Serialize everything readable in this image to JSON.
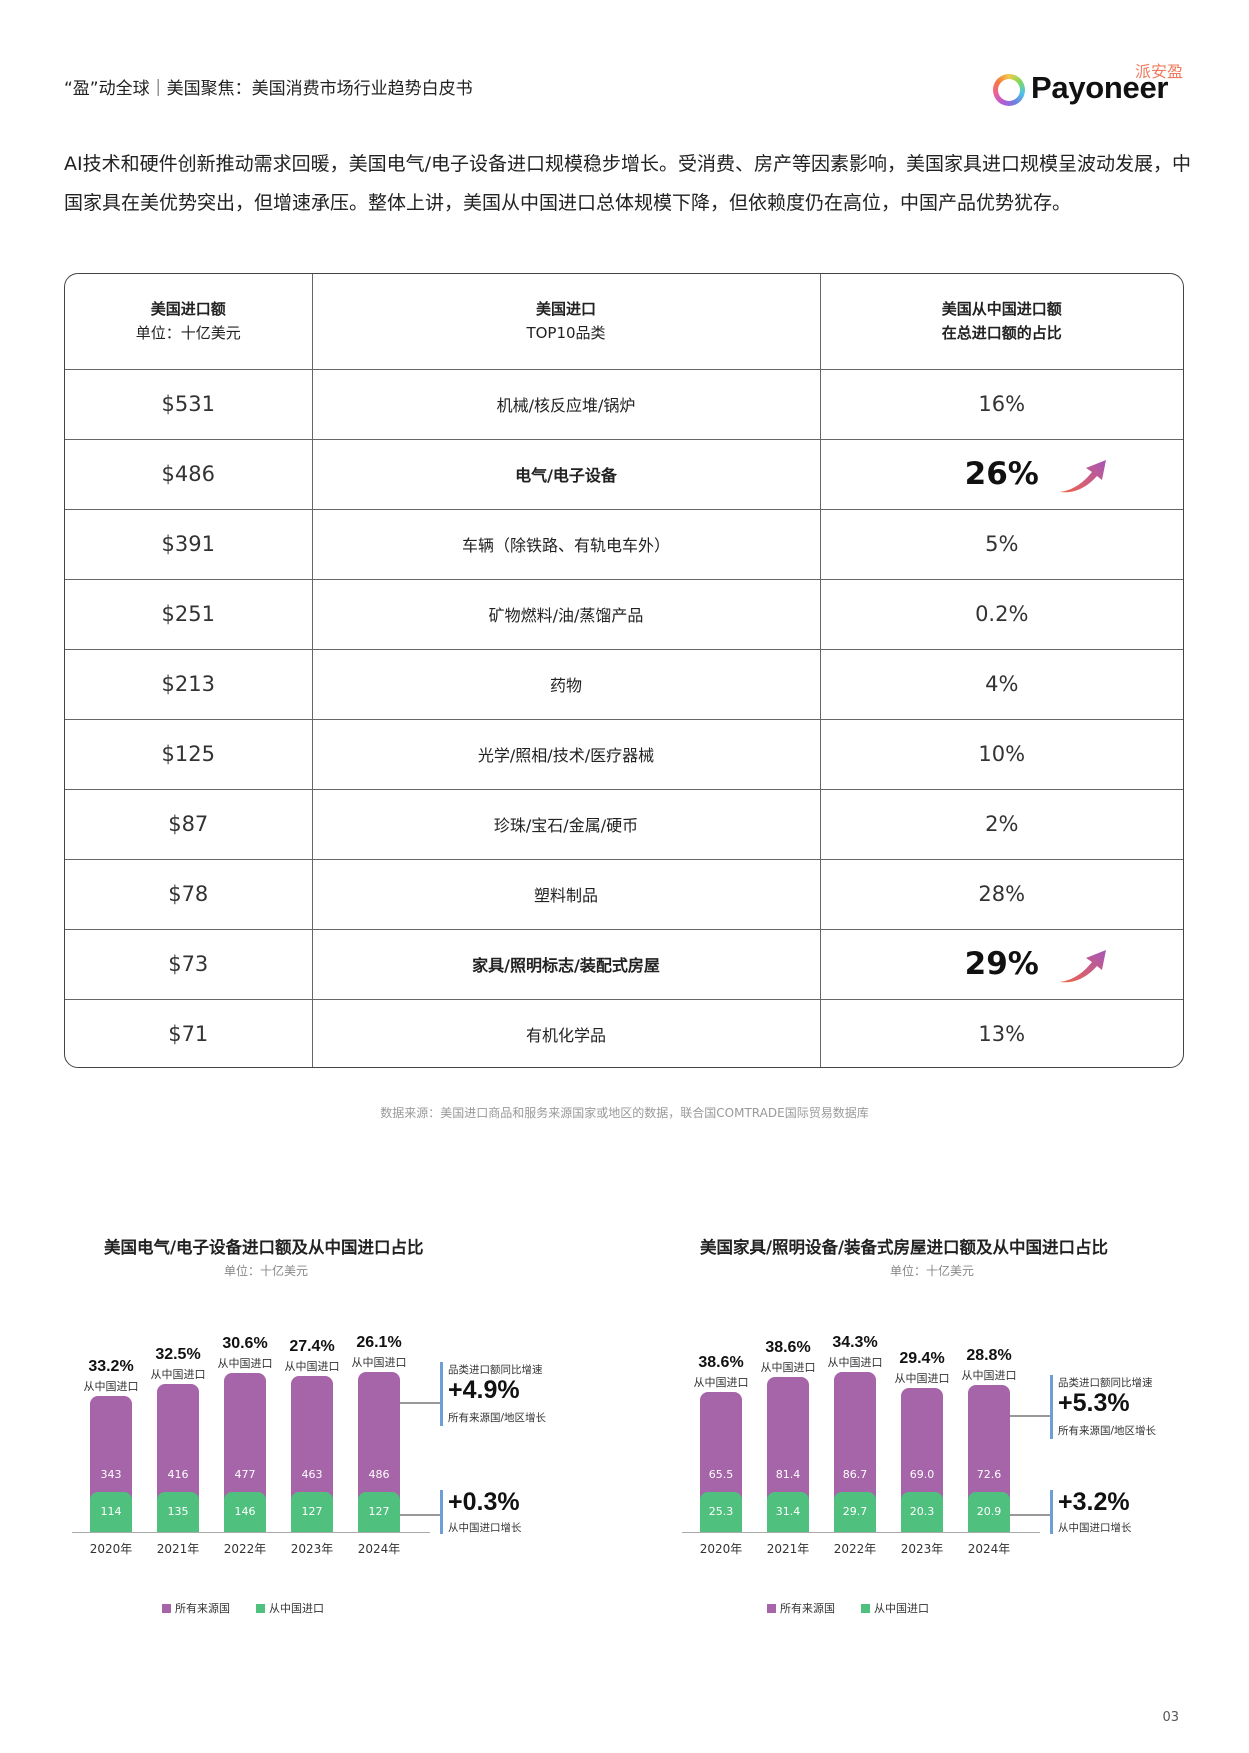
{
  "header": {
    "title": "“盈”动全球｜美国聚焦：美国消费市场行业趋势白皮书",
    "logo_cn": "派安盈",
    "logo_word": "Payoneer"
  },
  "intro": "AI技术和硬件创新推动需求回暖，美国电气/电子设备进口规模稳步增长。受消费、房产等因素影响，美国家具进口规模呈波动发展，中国家具在美优势突出，但增速承压。整体上讲，美国从中国进口总体规模下降，但依赖度仍在高位，中国产品优势犹存。",
  "table": {
    "headers": [
      {
        "title": "美国进口额",
        "sub": "单位：十亿美元"
      },
      {
        "title": "美国进口",
        "sub": "TOP10品类"
      },
      {
        "title": "美国从中国进口额",
        "sub": "在总进口额的占比"
      }
    ],
    "rows": [
      {
        "amount": "$531",
        "category": "机械/核反应堆/锅炉",
        "share": "16%"
      },
      {
        "amount": "$486",
        "category": "电气/电子设备",
        "share": "26%",
        "highlight": true
      },
      {
        "amount": "$391",
        "category": "车辆（除铁路、有轨电车外）",
        "share": "5%"
      },
      {
        "amount": "$251",
        "category": "矿物燃料/油/蒸馏产品",
        "share": "0.2%"
      },
      {
        "amount": "$213",
        "category": "药物",
        "share": "4%"
      },
      {
        "amount": "$125",
        "category": "光学/照相/技术/医疗器械",
        "share": "10%"
      },
      {
        "amount": "$87",
        "category": "珍珠/宝石/金属/硬币",
        "share": "2%"
      },
      {
        "amount": "$78",
        "category": "塑料制品",
        "share": "28%"
      },
      {
        "amount": "$73",
        "category": "家具/照明标志/装配式房屋",
        "share": "29%",
        "highlight": true
      },
      {
        "amount": "$71",
        "category": "有机化学品",
        "share": "13%"
      }
    ]
  },
  "source": "数据来源：美国进口商品和服务来源国家或地区的数据，联合国COMTRADE国际贸易数据库",
  "legend": {
    "all": "所有来源国",
    "china": "从中国进口"
  },
  "colors": {
    "all_sources": "#a565a8",
    "from_china": "#50c07f",
    "callout_bar": "#6e9ed6",
    "logo_cn": "#f07a5c"
  },
  "charts": [
    {
      "title": "美国电气/电子设备进口额及从中国进口占比",
      "unit": "单位：十亿美元",
      "pct_sub": "从中国进口",
      "callout_top_label": "品类进口额同比增速",
      "callout_top_value": "+4.9%",
      "callout_top_sub": "所有来源国/地区增长",
      "callout_bottom_value": "+0.3%",
      "callout_bottom_sub": "从中国进口增长"
    },
    {
      "title": "美国家具/照明设备/装备式房屋进口额及从中国进口占比",
      "unit": "单位：十亿美元",
      "pct_sub": "从中国进口",
      "callout_top_label": "品类进口额同比增速",
      "callout_top_value": "+5.3%",
      "callout_top_sub": "所有来源国/地区增长",
      "callout_bottom_value": "+3.2%",
      "callout_bottom_sub": "从中国进口增长"
    }
  ],
  "page_number": "03",
  "chart_data": [
    {
      "type": "bar",
      "title": "美国电气/电子设备进口额及从中国进口占比",
      "subtitle": "单位：十亿美元",
      "categories": [
        "2020年",
        "2021年",
        "2022年",
        "2023年",
        "2024年"
      ],
      "series": [
        {
          "name": "所有来源国",
          "values": [
            343,
            416,
            477,
            463,
            486
          ]
        },
        {
          "name": "从中国进口",
          "values": [
            114,
            135,
            146,
            127,
            127
          ]
        }
      ],
      "annotations": {
        "china_share": [
          "33.2%",
          "32.5%",
          "30.6%",
          "27.4%",
          "26.1%"
        ],
        "yoy_all_sources": "+4.9%",
        "yoy_from_china": "+0.3%"
      },
      "legend_position": "bottom",
      "grid": false
    },
    {
      "type": "bar",
      "title": "美国家具/照明设备/装备式房屋进口额及从中国进口占比",
      "subtitle": "单位：十亿美元",
      "categories": [
        "2020年",
        "2021年",
        "2022年",
        "2023年",
        "2024年"
      ],
      "series": [
        {
          "name": "所有来源国",
          "values": [
            65.5,
            81.4,
            86.7,
            69.0,
            72.6
          ]
        },
        {
          "name": "从中国进口",
          "values": [
            25.3,
            31.4,
            29.7,
            20.3,
            20.9
          ]
        }
      ],
      "annotations": {
        "china_share": [
          "38.6%",
          "38.6%",
          "34.3%",
          "29.4%",
          "28.8%"
        ],
        "yoy_all_sources": "+5.3%",
        "yoy_from_china": "+3.2%"
      },
      "legend_position": "bottom",
      "grid": false
    }
  ]
}
